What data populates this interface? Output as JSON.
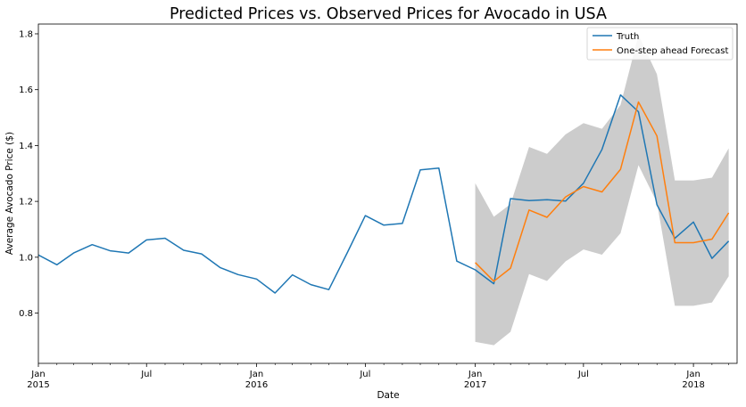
{
  "chart_data": {
    "type": "line",
    "title": "Predicted Prices vs. Observed Prices for Avocado in USA",
    "xlabel": "Date",
    "ylabel": "Average Avocado Price ($)",
    "xlim": [
      "2015-01-01",
      "2018-03-15"
    ],
    "ylim": [
      0.62,
      1.835
    ],
    "grid": false,
    "legend_position": "top-right",
    "y_ticks": [
      "0.8",
      "1.0",
      "1.2",
      "1.4",
      "1.6",
      "1.8"
    ],
    "x_ticks": [
      {
        "date": "2015-01-01",
        "label": "Jan",
        "year": "2015"
      },
      {
        "date": "2015-07-01",
        "label": "Jul",
        "year": ""
      },
      {
        "date": "2016-01-01",
        "label": "Jan",
        "year": "2016"
      },
      {
        "date": "2016-07-01",
        "label": "Jul",
        "year": ""
      },
      {
        "date": "2017-01-01",
        "label": "Jan",
        "year": "2017"
      },
      {
        "date": "2017-07-01",
        "label": "Jul",
        "year": ""
      },
      {
        "date": "2018-01-01",
        "label": "Jan",
        "year": "2018"
      }
    ],
    "series": [
      {
        "name": "Truth",
        "color": "#1f77b4",
        "x": [
          "2015-01-01",
          "2015-02-01",
          "2015-03-01",
          "2015-04-01",
          "2015-05-01",
          "2015-06-01",
          "2015-07-01",
          "2015-08-01",
          "2015-09-01",
          "2015-10-01",
          "2015-11-01",
          "2015-12-01",
          "2016-01-01",
          "2016-02-01",
          "2016-03-01",
          "2016-04-01",
          "2016-05-01",
          "2016-06-01",
          "2016-07-01",
          "2016-08-01",
          "2016-09-01",
          "2016-10-01",
          "2016-11-01",
          "2016-12-01",
          "2017-01-01",
          "2017-02-01",
          "2017-03-01",
          "2017-04-01",
          "2017-05-01",
          "2017-06-01",
          "2017-07-01",
          "2017-08-01",
          "2017-09-01",
          "2017-10-01",
          "2017-11-01",
          "2017-12-01",
          "2018-01-01",
          "2018-02-01",
          "2018-03-01"
        ],
        "values": [
          1.008,
          0.973,
          1.015,
          1.045,
          1.023,
          1.015,
          1.062,
          1.068,
          1.025,
          1.012,
          0.963,
          0.938,
          0.922,
          0.872,
          0.937,
          0.902,
          0.884,
          1.017,
          1.149,
          1.115,
          1.121,
          1.313,
          1.319,
          0.986,
          0.955,
          0.905,
          1.21,
          1.203,
          1.206,
          1.201,
          1.265,
          1.386,
          1.581,
          1.521,
          1.188,
          1.068,
          1.126,
          0.996,
          1.058
        ]
      },
      {
        "name": "One-step ahead Forecast",
        "color": "#ff7f0e",
        "x": [
          "2017-01-01",
          "2017-02-01",
          "2017-03-01",
          "2017-04-01",
          "2017-05-01",
          "2017-06-01",
          "2017-07-01",
          "2017-08-01",
          "2017-09-01",
          "2017-10-01",
          "2017-11-01",
          "2017-12-01",
          "2018-01-01",
          "2018-02-01",
          "2018-03-01"
        ],
        "values": [
          0.981,
          0.914,
          0.961,
          1.169,
          1.143,
          1.216,
          1.253,
          1.234,
          1.315,
          1.556,
          1.434,
          1.052,
          1.052,
          1.065,
          1.159
        ]
      }
    ],
    "confidence_band": {
      "color": "#808080",
      "x": [
        "2017-01-01",
        "2017-02-01",
        "2017-03-01",
        "2017-04-01",
        "2017-05-01",
        "2017-06-01",
        "2017-07-01",
        "2017-08-01",
        "2017-09-01",
        "2017-10-01",
        "2017-11-01",
        "2017-12-01",
        "2018-01-01",
        "2018-02-01",
        "2018-03-01"
      ],
      "upper": [
        1.265,
        1.145,
        1.19,
        1.395,
        1.37,
        1.44,
        1.48,
        1.46,
        1.545,
        1.795,
        1.655,
        1.275,
        1.275,
        1.285,
        1.39
      ],
      "lower": [
        0.697,
        0.685,
        0.733,
        0.94,
        0.915,
        0.985,
        1.028,
        1.009,
        1.086,
        1.33,
        1.196,
        0.826,
        0.826,
        0.838,
        0.932
      ]
    }
  }
}
